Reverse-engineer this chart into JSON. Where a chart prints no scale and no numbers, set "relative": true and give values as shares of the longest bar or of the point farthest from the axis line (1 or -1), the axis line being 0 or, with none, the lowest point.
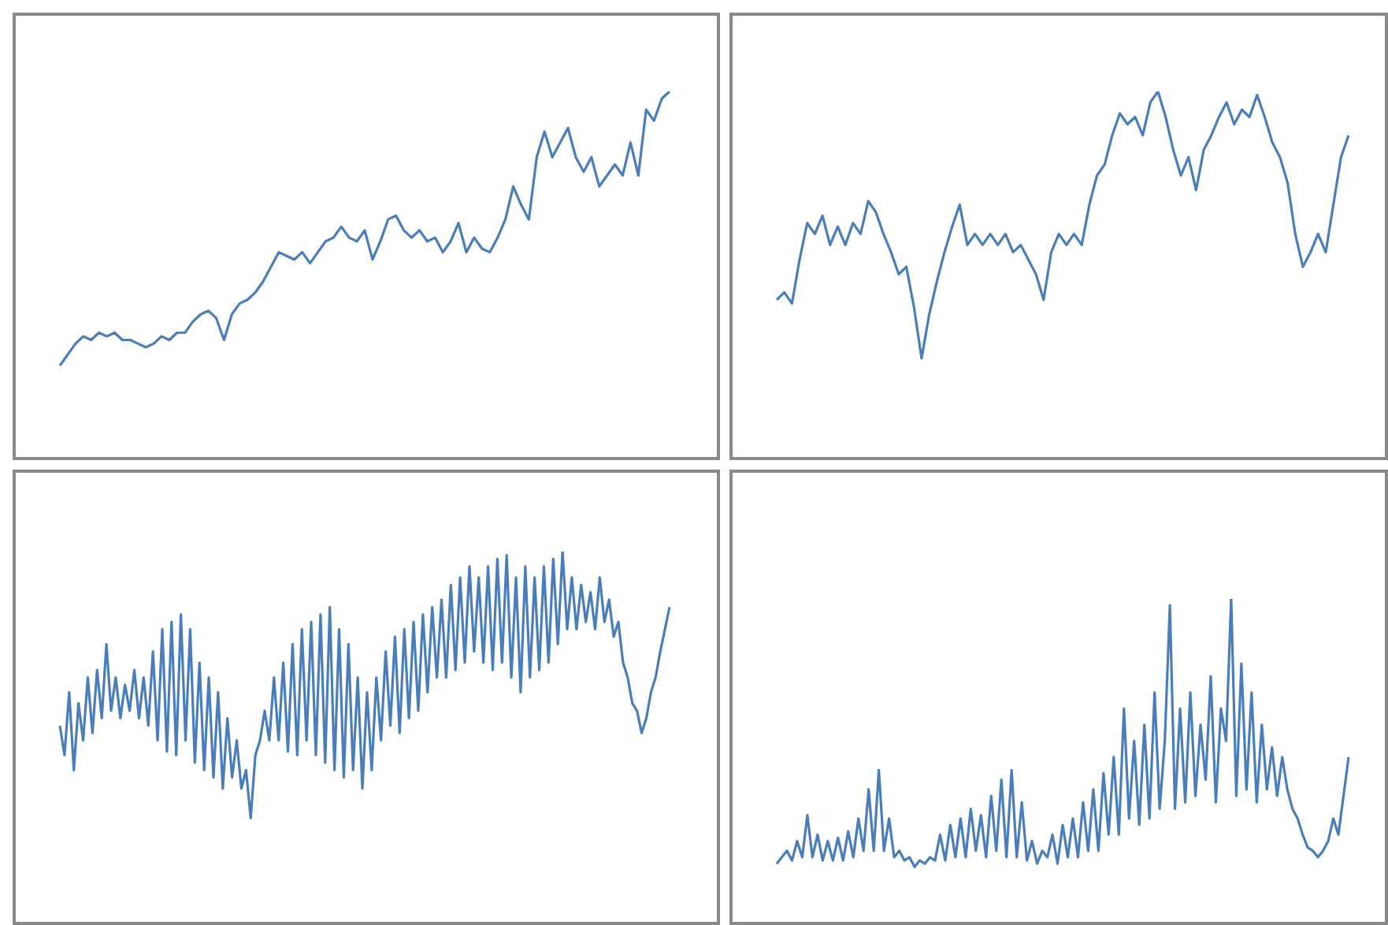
{
  "chart_data": [
    {
      "type": "line",
      "relative": true,
      "categories": [
        null,
        null,
        null,
        null,
        null,
        null,
        null,
        null,
        null,
        null,
        null,
        null,
        null,
        null,
        null,
        null,
        null,
        null,
        null,
        null,
        null,
        null,
        null,
        null,
        null,
        null,
        null,
        null,
        null,
        null,
        null,
        null,
        null,
        null,
        null,
        null,
        null,
        null,
        null,
        null,
        null,
        null,
        null,
        null,
        null,
        null,
        null,
        null,
        null,
        null,
        null,
        null,
        null,
        null,
        null,
        null,
        null,
        null,
        null,
        null,
        null,
        null,
        null,
        null,
        null,
        null,
        null,
        null,
        null,
        null,
        null,
        null,
        null,
        null,
        null,
        null,
        null,
        null,
        null
      ],
      "series": [
        {
          "color": "#4a7ebb",
          "values": [
            0.25,
            0.28,
            0.31,
            0.33,
            0.32,
            0.34,
            0.33,
            0.34,
            0.32,
            0.32,
            0.31,
            0.3,
            0.31,
            0.33,
            0.32,
            0.34,
            0.34,
            0.37,
            0.39,
            0.4,
            0.38,
            0.32,
            0.39,
            0.42,
            0.43,
            0.45,
            0.48,
            0.52,
            0.56,
            0.55,
            0.54,
            0.56,
            0.53,
            0.56,
            0.59,
            0.6,
            0.63,
            0.6,
            0.59,
            0.62,
            0.54,
            0.59,
            0.65,
            0.66,
            0.62,
            0.6,
            0.62,
            0.59,
            0.6,
            0.56,
            0.59,
            0.64,
            0.56,
            0.6,
            0.57,
            0.56,
            0.6,
            0.65,
            0.74,
            0.69,
            0.65,
            0.82,
            0.89,
            0.82,
            0.86,
            0.9,
            0.82,
            0.78,
            0.82,
            0.74,
            0.77,
            0.8,
            0.77,
            0.86,
            0.77,
            0.95,
            0.92,
            0.98,
            1
          ]
        }
      ]
    },
    {
      "type": "line",
      "relative": true,
      "categories": [
        null,
        null,
        null,
        null,
        null,
        null,
        null,
        null,
        null,
        null,
        null,
        null,
        null,
        null,
        null,
        null,
        null,
        null,
        null,
        null,
        null,
        null,
        null,
        null,
        null,
        null,
        null,
        null,
        null,
        null,
        null,
        null,
        null,
        null,
        null,
        null,
        null,
        null,
        null,
        null,
        null,
        null,
        null,
        null,
        null,
        null,
        null,
        null,
        null,
        null,
        null,
        null,
        null,
        null,
        null,
        null,
        null,
        null,
        null,
        null,
        null,
        null,
        null,
        null,
        null,
        null,
        null,
        null,
        null,
        null,
        null,
        null,
        null,
        null,
        null,
        null
      ],
      "series": [
        {
          "color": "#4a7ebb",
          "values": [
            0.43,
            0.45,
            0.42,
            0.54,
            0.64,
            0.61,
            0.66,
            0.58,
            0.63,
            0.58,
            0.64,
            0.61,
            0.7,
            0.67,
            0.61,
            0.56,
            0.5,
            0.52,
            0.41,
            0.27,
            0.39,
            0.48,
            0.56,
            0.63,
            0.69,
            0.58,
            0.61,
            0.58,
            0.61,
            0.58,
            0.61,
            0.56,
            0.58,
            0.54,
            0.5,
            0.43,
            0.56,
            0.61,
            0.58,
            0.61,
            0.58,
            0.69,
            0.77,
            0.8,
            0.88,
            0.94,
            0.91,
            0.93,
            0.88,
            0.97,
            1,
            0.93,
            0.84,
            0.77,
            0.82,
            0.73,
            0.84,
            0.88,
            0.93,
            0.97,
            0.91,
            0.95,
            0.93,
            0.99,
            0.93,
            0.86,
            0.82,
            0.75,
            0.61,
            0.52,
            0.56,
            0.61,
            0.56,
            0.69,
            0.82,
            0.88
          ]
        }
      ]
    },
    {
      "type": "line",
      "relative": true,
      "categories": [
        null,
        null,
        null,
        null,
        null,
        null,
        null,
        null,
        null,
        null,
        null,
        null,
        null,
        null,
        null,
        null,
        null,
        null,
        null,
        null,
        null,
        null,
        null,
        null,
        null,
        null,
        null,
        null,
        null,
        null,
        null,
        null,
        null,
        null,
        null,
        null,
        null,
        null,
        null,
        null,
        null,
        null,
        null,
        null,
        null,
        null,
        null,
        null,
        null,
        null,
        null,
        null,
        null,
        null,
        null,
        null,
        null,
        null,
        null,
        null,
        null,
        null,
        null,
        null,
        null,
        null,
        null,
        null,
        null,
        null,
        null,
        null,
        null,
        null,
        null,
        null,
        null,
        null,
        null,
        null,
        null,
        null,
        null,
        null,
        null,
        null,
        null,
        null,
        null,
        null,
        null,
        null,
        null,
        null,
        null,
        null,
        null,
        null,
        null,
        null,
        null,
        null,
        null,
        null,
        null,
        null,
        null,
        null,
        null,
        null,
        null,
        null,
        null,
        null,
        null,
        null,
        null,
        null,
        null,
        null,
        null,
        null,
        null,
        null,
        null,
        null,
        null,
        null,
        null,
        null,
        null,
        null
      ],
      "series": [
        {
          "color": "#4a7ebb",
          "values": [
            0.53,
            0.45,
            0.62,
            0.41,
            0.59,
            0.49,
            0.66,
            0.51,
            0.68,
            0.55,
            0.75,
            0.57,
            0.66,
            0.55,
            0.64,
            0.57,
            0.68,
            0.55,
            0.66,
            0.53,
            0.73,
            0.49,
            0.79,
            0.46,
            0.81,
            0.45,
            0.83,
            0.49,
            0.79,
            0.43,
            0.7,
            0.41,
            0.66,
            0.39,
            0.62,
            0.36,
            0.55,
            0.39,
            0.49,
            0.36,
            0.41,
            0.28,
            0.45,
            0.49,
            0.57,
            0.49,
            0.66,
            0.49,
            0.7,
            0.46,
            0.75,
            0.45,
            0.79,
            0.49,
            0.81,
            0.45,
            0.83,
            0.43,
            0.85,
            0.41,
            0.79,
            0.39,
            0.75,
            0.41,
            0.66,
            0.36,
            0.62,
            0.41,
            0.66,
            0.49,
            0.73,
            0.53,
            0.77,
            0.51,
            0.79,
            0.55,
            0.81,
            0.57,
            0.83,
            0.62,
            0.85,
            0.66,
            0.87,
            0.66,
            0.91,
            0.68,
            0.93,
            0.7,
            0.96,
            0.73,
            0.93,
            0.7,
            0.96,
            0.68,
            0.98,
            0.7,
            0.99,
            0.66,
            0.93,
            0.62,
            0.96,
            0.66,
            0.93,
            0.68,
            0.96,
            0.7,
            0.98,
            0.75,
            1,
            0.79,
            0.93,
            0.79,
            0.91,
            0.81,
            0.89,
            0.79,
            0.93,
            0.81,
            0.87,
            0.77,
            0.81,
            0.7,
            0.66,
            0.59,
            0.57,
            0.51,
            0.55,
            0.62,
            0.66,
            0.73,
            0.79,
            0.85
          ]
        }
      ]
    },
    {
      "type": "line",
      "relative": true,
      "categories": [
        null,
        null,
        null,
        null,
        null,
        null,
        null,
        null,
        null,
        null,
        null,
        null,
        null,
        null,
        null,
        null,
        null,
        null,
        null,
        null,
        null,
        null,
        null,
        null,
        null,
        null,
        null,
        null,
        null,
        null,
        null,
        null,
        null,
        null,
        null,
        null,
        null,
        null,
        null,
        null,
        null,
        null,
        null,
        null,
        null,
        null,
        null,
        null,
        null,
        null,
        null,
        null,
        null,
        null,
        null,
        null,
        null,
        null,
        null,
        null,
        null,
        null,
        null,
        null,
        null,
        null,
        null,
        null,
        null,
        null,
        null,
        null,
        null,
        null,
        null,
        null,
        null,
        null,
        null,
        null,
        null,
        null,
        null,
        null,
        null,
        null,
        null,
        null,
        null,
        null,
        null,
        null,
        null,
        null,
        null,
        null,
        null,
        null,
        null,
        null,
        null,
        null,
        null,
        null,
        null,
        null,
        null,
        null,
        null,
        null,
        null,
        null,
        null
      ],
      "series": [
        {
          "color": "#4a7ebb",
          "values": [
            0.18,
            0.2,
            0.22,
            0.19,
            0.25,
            0.2,
            0.33,
            0.2,
            0.27,
            0.19,
            0.25,
            0.19,
            0.26,
            0.19,
            0.28,
            0.2,
            0.32,
            0.22,
            0.41,
            0.22,
            0.47,
            0.22,
            0.32,
            0.2,
            0.22,
            0.19,
            0.2,
            0.17,
            0.19,
            0.18,
            0.2,
            0.19,
            0.27,
            0.19,
            0.3,
            0.2,
            0.32,
            0.2,
            0.35,
            0.22,
            0.33,
            0.2,
            0.39,
            0.22,
            0.44,
            0.2,
            0.47,
            0.2,
            0.37,
            0.19,
            0.25,
            0.18,
            0.22,
            0.2,
            0.27,
            0.18,
            0.3,
            0.2,
            0.32,
            0.2,
            0.37,
            0.22,
            0.41,
            0.22,
            0.46,
            0.27,
            0.51,
            0.27,
            0.66,
            0.32,
            0.56,
            0.3,
            0.61,
            0.32,
            0.71,
            0.35,
            0.56,
            0.98,
            0.35,
            0.66,
            0.37,
            0.71,
            0.39,
            0.61,
            0.44,
            0.76,
            0.37,
            0.66,
            0.56,
            1,
            0.39,
            0.8,
            0.41,
            0.71,
            0.37,
            0.61,
            0.41,
            0.54,
            0.39,
            0.51,
            0.41,
            0.35,
            0.32,
            0.27,
            0.23,
            0.22,
            0.2,
            0.22,
            0.25,
            0.32,
            0.27,
            0.39,
            0.51
          ]
        }
      ]
    }
  ]
}
